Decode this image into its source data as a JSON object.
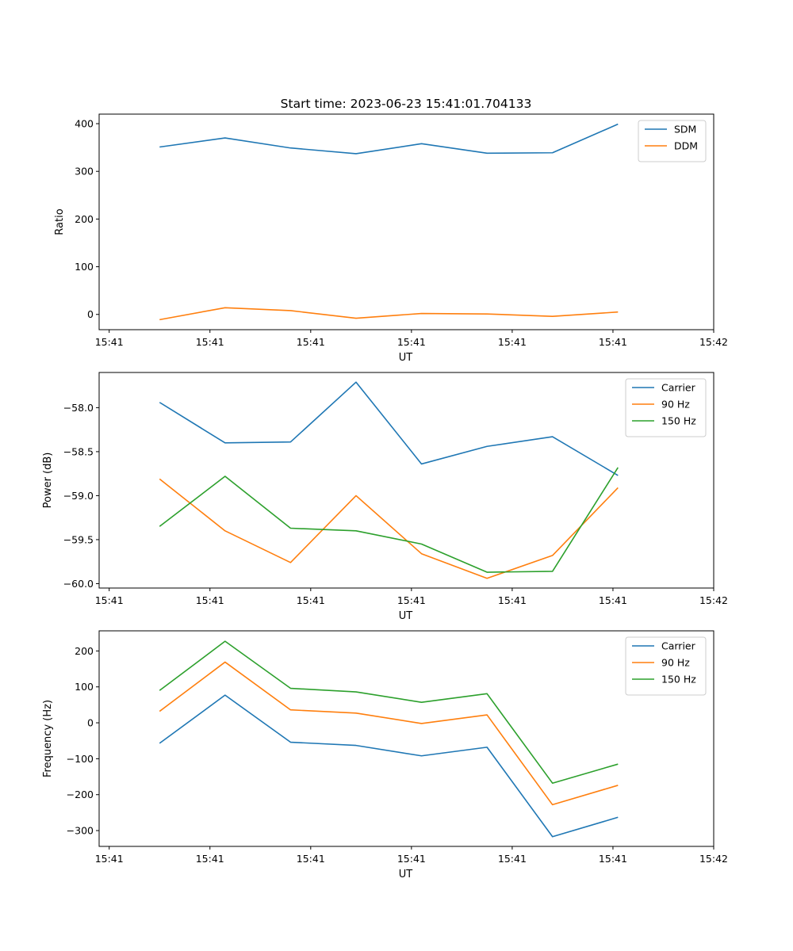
{
  "figure": {
    "title": "Start time: 2023-06-23 15:41:01.704133"
  },
  "colors": {
    "tab_blue": "#1f77b4",
    "tab_orange": "#ff7f0e",
    "tab_green": "#2ca02c"
  },
  "chart_data": [
    {
      "type": "line",
      "title": "Start time: 2023-06-23 15:41:01.704133",
      "xlabel": "UT",
      "ylabel": "Ratio",
      "xtick_labels": [
        "15:41",
        "15:41",
        "15:41",
        "15:41",
        "15:41",
        "15:41",
        "15:42"
      ],
      "x": [
        1.5,
        2.15,
        2.8,
        3.45,
        4.1,
        4.75,
        5.4,
        6.05
      ],
      "xlim": [
        0.9,
        7.0
      ],
      "ylim": [
        -32,
        420
      ],
      "yticks": [
        0,
        100,
        200,
        300,
        400
      ],
      "legend": "top-right",
      "series": [
        {
          "name": "SDM",
          "color": "#1f77b4",
          "values": [
            351,
            370,
            349,
            337,
            358,
            338,
            339,
            399
          ]
        },
        {
          "name": "DDM",
          "color": "#ff7f0e",
          "values": [
            -11,
            14,
            8,
            -8,
            2,
            1,
            -4,
            5
          ]
        }
      ]
    },
    {
      "type": "line",
      "xlabel": "UT",
      "ylabel": "Power (dB)",
      "xtick_labels": [
        "15:41",
        "15:41",
        "15:41",
        "15:41",
        "15:41",
        "15:41",
        "15:42"
      ],
      "x": [
        1.5,
        2.15,
        2.8,
        3.45,
        4.1,
        4.75,
        5.4,
        6.05
      ],
      "xlim": [
        0.9,
        7.0
      ],
      "ylim": [
        -60.05,
        -57.6
      ],
      "yticks": [
        -60.0,
        -59.5,
        -59.0,
        -58.5,
        -58.0
      ],
      "legend": "top-right",
      "series": [
        {
          "name": "Carrier",
          "color": "#1f77b4",
          "values": [
            -57.94,
            -58.4,
            -58.39,
            -57.71,
            -58.64,
            -58.44,
            -58.33,
            -58.77
          ]
        },
        {
          "name": "90 Hz",
          "color": "#ff7f0e",
          "values": [
            -58.81,
            -59.4,
            -59.76,
            -59.0,
            -59.66,
            -59.94,
            -59.68,
            -58.91
          ]
        },
        {
          "name": "150 Hz",
          "color": "#2ca02c",
          "values": [
            -59.35,
            -58.78,
            -59.37,
            -59.4,
            -59.55,
            -59.87,
            -59.86,
            -58.68
          ]
        }
      ]
    },
    {
      "type": "line",
      "xlabel": "UT",
      "ylabel": "Frequency (Hz)",
      "xtick_labels": [
        "15:41",
        "15:41",
        "15:41",
        "15:41",
        "15:41",
        "15:41",
        "15:42"
      ],
      "x": [
        1.5,
        2.15,
        2.8,
        3.45,
        4.1,
        4.75,
        5.4,
        6.05
      ],
      "xlim": [
        0.9,
        7.0
      ],
      "ylim": [
        -344,
        256
      ],
      "yticks": [
        -300,
        -200,
        -100,
        0,
        100,
        200
      ],
      "legend": "top-right",
      "series": [
        {
          "name": "Carrier",
          "color": "#1f77b4",
          "values": [
            -57,
            77,
            -54,
            -63,
            -92,
            -68,
            -317,
            -263
          ]
        },
        {
          "name": "90 Hz",
          "color": "#ff7f0e",
          "values": [
            32,
            169,
            36,
            27,
            -2,
            22,
            -228,
            -174
          ]
        },
        {
          "name": "150 Hz",
          "color": "#2ca02c",
          "values": [
            90,
            227,
            96,
            86,
            57,
            81,
            -168,
            -115
          ]
        }
      ]
    }
  ]
}
